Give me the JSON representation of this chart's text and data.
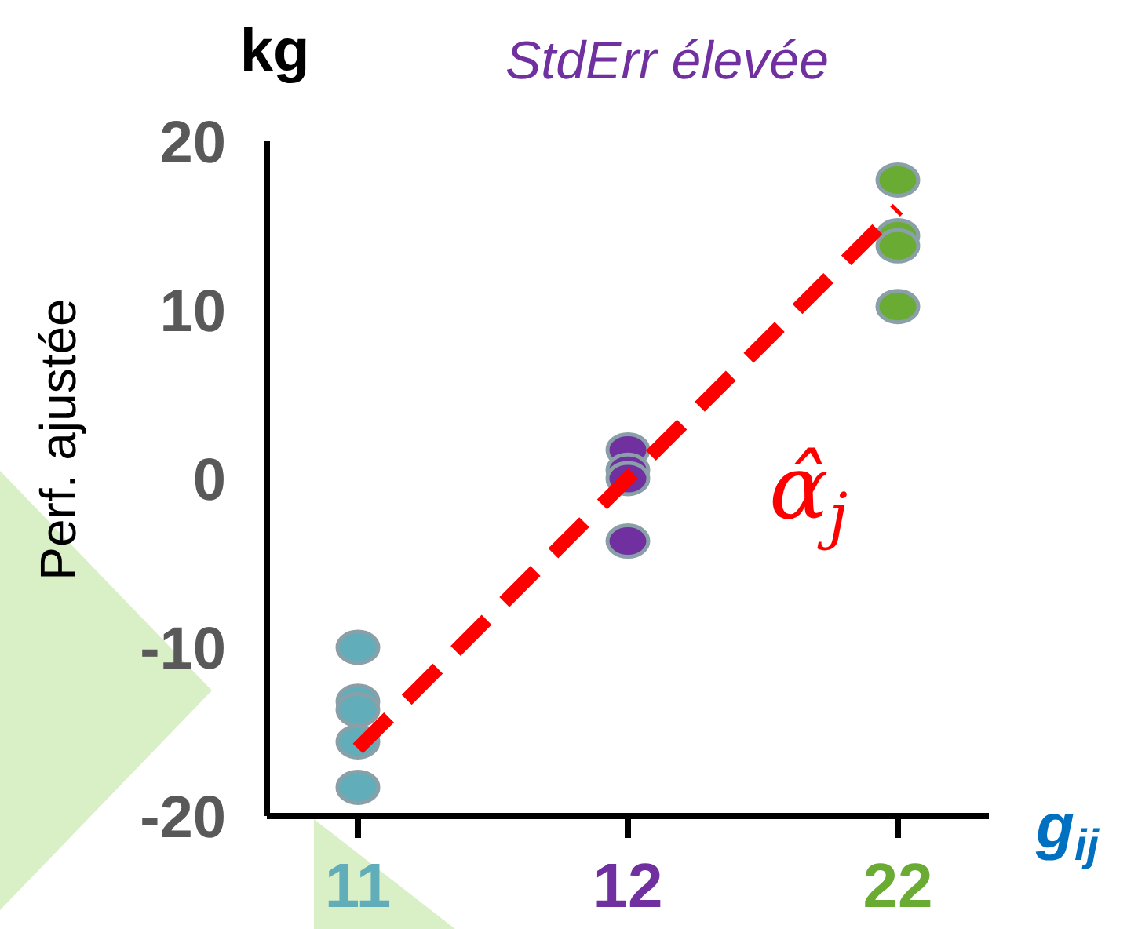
{
  "chart_data": {
    "type": "scatter",
    "title": "StdErr élevée",
    "xlabel": "g$_{ij}$",
    "ylabel": "Perf. ajustée",
    "annotations": [
      "kg",
      "α̂$_{j}$"
    ],
    "categories": [
      "11",
      "12",
      "22"
    ],
    "series": [
      {
        "marker": "circle",
        "color": "#62adba",
        "x": [
          "11",
          "11",
          "11",
          "11",
          "11"
        ],
        "values": [
          -10,
          -13.2,
          -13.7,
          -15.6,
          -18.3
        ]
      },
      {
        "marker": "circle",
        "color": "#7030a0",
        "x": [
          "12",
          "12",
          "12",
          "12"
        ],
        "values": [
          1.7,
          0.5,
          0,
          -3.7
        ]
      },
      {
        "marker": "circle",
        "color": "#6aab34",
        "x": [
          "22",
          "22",
          "22",
          "22"
        ],
        "values": [
          17.7,
          14.4,
          13.8,
          10.2
        ]
      },
      {
        "type": "line",
        "color": "#ff0000",
        "x": [
          "11",
          "22"
        ],
        "values": [
          -16,
          16
        ],
        "line_style": "dashed",
        "marker": "none"
      }
    ],
    "ylim": [
      -20,
      20
    ],
    "yticks": [
      -20,
      -10,
      0,
      10,
      20
    ],
    "grid": false,
    "legend": false
  }
}
